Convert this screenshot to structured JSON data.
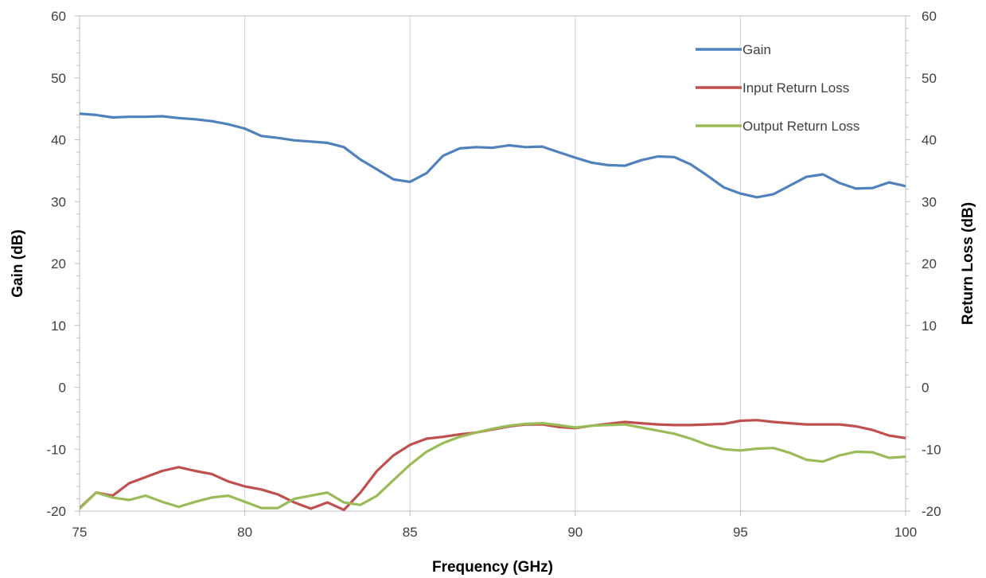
{
  "chart_data": {
    "type": "line",
    "x_axis": {
      "label": "Frequency (GHz)",
      "range": [
        75,
        100
      ],
      "ticks": [
        75,
        80,
        85,
        90,
        95,
        100
      ]
    },
    "y_axis_left": {
      "label": "Gain (dB)",
      "range": [
        -20,
        60
      ],
      "ticks": [
        -20,
        -10,
        0,
        10,
        20,
        30,
        40,
        50,
        60
      ]
    },
    "y_axis_right": {
      "label": "Return Loss (dB)",
      "range": [
        -20,
        60
      ],
      "ticks": [
        -20,
        -10,
        0,
        10,
        20,
        30,
        40,
        50,
        60
      ]
    },
    "grid": "vertical major gridlines",
    "legend_position": "top-right",
    "series": [
      {
        "name": "Gain",
        "color": "#4f81bd",
        "points": [
          [
            75,
            44.2
          ],
          [
            75.5,
            44.0
          ],
          [
            76,
            43.6
          ],
          [
            76.5,
            43.7
          ],
          [
            77,
            43.7
          ],
          [
            77.5,
            43.8
          ],
          [
            78,
            43.5
          ],
          [
            78.5,
            43.3
          ],
          [
            79,
            43.0
          ],
          [
            79.5,
            42.5
          ],
          [
            80,
            41.8
          ],
          [
            80.5,
            40.6
          ],
          [
            81,
            40.3
          ],
          [
            81.5,
            39.9
          ],
          [
            82,
            39.7
          ],
          [
            82.5,
            39.5
          ],
          [
            83,
            38.8
          ],
          [
            83.5,
            36.8
          ],
          [
            84,
            35.2
          ],
          [
            84.5,
            33.6
          ],
          [
            85,
            33.2
          ],
          [
            85.5,
            34.6
          ],
          [
            86,
            37.4
          ],
          [
            86.5,
            38.6
          ],
          [
            87,
            38.8
          ],
          [
            87.5,
            38.7
          ],
          [
            88,
            39.1
          ],
          [
            88.5,
            38.8
          ],
          [
            89,
            38.9
          ],
          [
            89.5,
            38.0
          ],
          [
            90,
            37.1
          ],
          [
            90.5,
            36.3
          ],
          [
            91,
            35.9
          ],
          [
            91.5,
            35.8
          ],
          [
            92,
            36.7
          ],
          [
            92.5,
            37.3
          ],
          [
            93,
            37.2
          ],
          [
            93.5,
            36.0
          ],
          [
            94,
            34.2
          ],
          [
            94.5,
            32.3
          ],
          [
            95,
            31.3
          ],
          [
            95.5,
            30.7
          ],
          [
            96,
            31.2
          ],
          [
            96.5,
            32.6
          ],
          [
            97,
            34.0
          ],
          [
            97.5,
            34.4
          ],
          [
            98,
            33.0
          ],
          [
            98.5,
            32.1
          ],
          [
            99,
            32.2
          ],
          [
            99.5,
            33.1
          ],
          [
            100,
            32.5
          ]
        ]
      },
      {
        "name": "Input Return Loss",
        "color": "#c0504d",
        "points": [
          [
            75,
            -19.5
          ],
          [
            75.5,
            -17.0
          ],
          [
            76,
            -17.5
          ],
          [
            76.5,
            -15.5
          ],
          [
            77,
            -14.5
          ],
          [
            77.5,
            -13.5
          ],
          [
            78,
            -12.9
          ],
          [
            78.5,
            -13.5
          ],
          [
            79,
            -14.0
          ],
          [
            79.5,
            -15.2
          ],
          [
            80,
            -16.0
          ],
          [
            80.5,
            -16.5
          ],
          [
            81,
            -17.3
          ],
          [
            81.5,
            -18.6
          ],
          [
            82,
            -19.6
          ],
          [
            82.5,
            -18.6
          ],
          [
            83,
            -19.8
          ],
          [
            83.5,
            -17.0
          ],
          [
            84,
            -13.5
          ],
          [
            84.5,
            -11.0
          ],
          [
            85,
            -9.3
          ],
          [
            85.5,
            -8.3
          ],
          [
            86,
            -8.0
          ],
          [
            86.5,
            -7.6
          ],
          [
            87,
            -7.3
          ],
          [
            87.5,
            -6.8
          ],
          [
            88,
            -6.3
          ],
          [
            88.5,
            -6.0
          ],
          [
            89,
            -6.0
          ],
          [
            89.5,
            -6.4
          ],
          [
            90,
            -6.6
          ],
          [
            90.5,
            -6.2
          ],
          [
            91,
            -5.9
          ],
          [
            91.5,
            -5.6
          ],
          [
            92,
            -5.8
          ],
          [
            92.5,
            -6.0
          ],
          [
            93,
            -6.1
          ],
          [
            93.5,
            -6.1
          ],
          [
            94,
            -6.0
          ],
          [
            94.5,
            -5.9
          ],
          [
            95,
            -5.4
          ],
          [
            95.5,
            -5.3
          ],
          [
            96,
            -5.6
          ],
          [
            96.5,
            -5.8
          ],
          [
            97,
            -6.0
          ],
          [
            97.5,
            -6.0
          ],
          [
            98,
            -6.0
          ],
          [
            98.5,
            -6.3
          ],
          [
            99,
            -6.9
          ],
          [
            99.5,
            -7.8
          ],
          [
            100,
            -8.2
          ]
        ]
      },
      {
        "name": "Output Return Loss",
        "color": "#9bbb59",
        "points": [
          [
            75,
            -19.6
          ],
          [
            75.5,
            -17.0
          ],
          [
            76,
            -17.8
          ],
          [
            76.5,
            -18.2
          ],
          [
            77,
            -17.5
          ],
          [
            77.5,
            -18.5
          ],
          [
            78,
            -19.3
          ],
          [
            78.5,
            -18.5
          ],
          [
            79,
            -17.8
          ],
          [
            79.5,
            -17.5
          ],
          [
            80,
            -18.5
          ],
          [
            80.5,
            -19.5
          ],
          [
            81,
            -19.5
          ],
          [
            81.5,
            -18.0
          ],
          [
            82,
            -17.5
          ],
          [
            82.5,
            -17.0
          ],
          [
            83,
            -18.6
          ],
          [
            83.5,
            -19.0
          ],
          [
            84,
            -17.5
          ],
          [
            84.5,
            -15.0
          ],
          [
            85,
            -12.5
          ],
          [
            85.5,
            -10.4
          ],
          [
            86,
            -9.0
          ],
          [
            86.5,
            -8.0
          ],
          [
            87,
            -7.3
          ],
          [
            87.5,
            -6.7
          ],
          [
            88,
            -6.2
          ],
          [
            88.5,
            -5.9
          ],
          [
            89,
            -5.8
          ],
          [
            89.5,
            -6.1
          ],
          [
            90,
            -6.5
          ],
          [
            90.5,
            -6.2
          ],
          [
            91,
            -6.1
          ],
          [
            91.5,
            -6.0
          ],
          [
            92,
            -6.5
          ],
          [
            92.5,
            -7.0
          ],
          [
            93,
            -7.5
          ],
          [
            93.5,
            -8.3
          ],
          [
            94,
            -9.3
          ],
          [
            94.5,
            -10.0
          ],
          [
            95,
            -10.2
          ],
          [
            95.5,
            -9.9
          ],
          [
            96,
            -9.8
          ],
          [
            96.5,
            -10.6
          ],
          [
            97,
            -11.7
          ],
          [
            97.5,
            -12.0
          ],
          [
            98,
            -11.0
          ],
          [
            98.5,
            -10.4
          ],
          [
            99,
            -10.5
          ],
          [
            99.5,
            -11.4
          ],
          [
            100,
            -11.2
          ]
        ]
      }
    ]
  }
}
